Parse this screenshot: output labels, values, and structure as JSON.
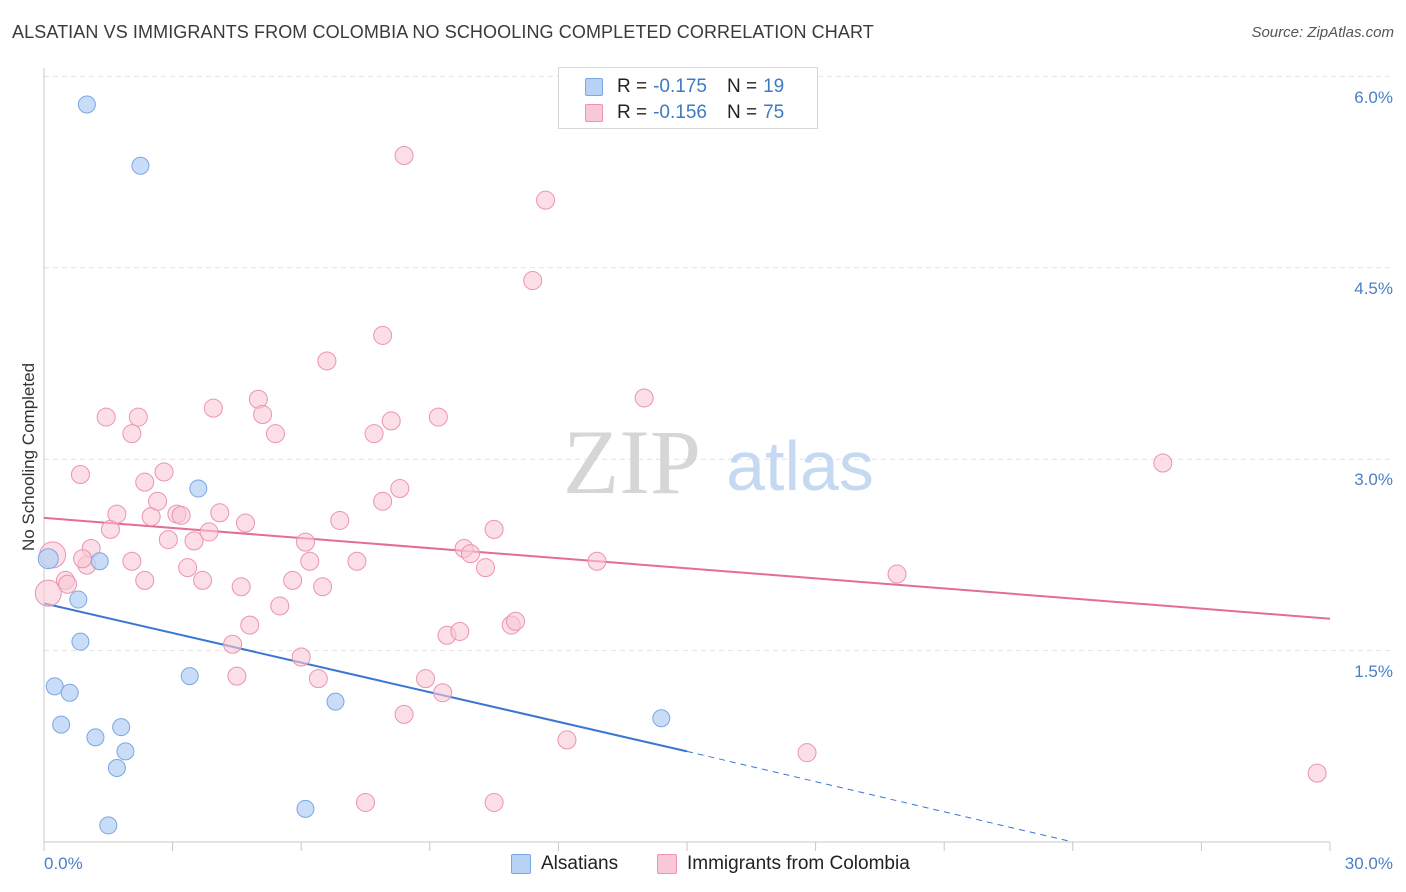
{
  "title": "ALSATIAN VS IMMIGRANTS FROM COLOMBIA NO SCHOOLING COMPLETED CORRELATION CHART",
  "source": "Source: ZipAtlas.com",
  "watermark": {
    "zip": "ZIP",
    "atlas": "atlas"
  },
  "legend": {
    "r_label": "R =",
    "n_label": "N =",
    "alsatians": {
      "r": "-0.175",
      "n": "19"
    },
    "colombia": {
      "r": "-0.156",
      "n": "75"
    }
  },
  "colors": {
    "blue_fill": "#b8d2f5",
    "blue_stroke": "#7aa7e2",
    "blue_line": "#3a77d1",
    "pink_fill": "#f8c8d6",
    "pink_stroke": "#ec93b0",
    "pink_line": "#e46d94",
    "tick_label": "#4a7fc6"
  },
  "chart_data": {
    "type": "scatter",
    "title": "ALSATIAN VS IMMIGRANTS FROM COLOMBIA NO SCHOOLING COMPLETED CORRELATION CHART",
    "xlabel": "",
    "ylabel": "No Schooling Completed",
    "xlim": [
      0,
      30
    ],
    "ylim": [
      0,
      6.3
    ],
    "x_tick_labels": [
      "0.0%",
      "30.0%"
    ],
    "y_ticks": [
      1.5,
      3.0,
      4.5,
      6.0
    ],
    "y_tick_labels": [
      "1.5%",
      "3.0%",
      "4.5%",
      "6.0%"
    ],
    "grid": "horizontal dashed",
    "legend_position": "bottom-center",
    "series": [
      {
        "name": "Alsatians",
        "color": "#7aa7e2",
        "points": [
          [
            0.1,
            2.22
          ],
          [
            1.0,
            5.78
          ],
          [
            2.25,
            5.3
          ],
          [
            0.8,
            1.9
          ],
          [
            1.3,
            2.2
          ],
          [
            0.85,
            1.57
          ],
          [
            3.6,
            2.77
          ],
          [
            0.25,
            1.22
          ],
          [
            0.6,
            1.17
          ],
          [
            0.4,
            0.92
          ],
          [
            1.2,
            0.82
          ],
          [
            1.8,
            0.9
          ],
          [
            1.9,
            0.71
          ],
          [
            1.7,
            0.58
          ],
          [
            3.4,
            1.3
          ],
          [
            6.8,
            1.1
          ],
          [
            14.4,
            0.97
          ],
          [
            1.5,
            0.13
          ],
          [
            6.1,
            0.26
          ]
        ],
        "trend": {
          "x0": 0,
          "y0": 1.87,
          "x1": 15.0,
          "y1": 0.71,
          "dashed_to_x": 24.0,
          "dashed_to_y": 0.0
        }
      },
      {
        "name": "Immigrants from Colombia",
        "color": "#ec93b0",
        "points": [
          [
            0.2,
            2.25
          ],
          [
            0.1,
            1.95
          ],
          [
            0.5,
            2.05
          ],
          [
            0.55,
            2.02
          ],
          [
            1.0,
            2.17
          ],
          [
            1.1,
            2.3
          ],
          [
            0.85,
            2.88
          ],
          [
            1.45,
            3.33
          ],
          [
            1.55,
            2.45
          ],
          [
            2.05,
            2.2
          ],
          [
            2.35,
            2.05
          ],
          [
            1.7,
            2.57
          ],
          [
            2.2,
            3.33
          ],
          [
            2.05,
            3.2
          ],
          [
            2.35,
            2.82
          ],
          [
            2.5,
            2.55
          ],
          [
            2.65,
            2.67
          ],
          [
            2.8,
            2.9
          ],
          [
            2.9,
            2.37
          ],
          [
            3.1,
            2.57
          ],
          [
            3.2,
            2.56
          ],
          [
            3.35,
            2.15
          ],
          [
            3.5,
            2.36
          ],
          [
            3.7,
            2.05
          ],
          [
            3.85,
            2.43
          ],
          [
            3.95,
            3.4
          ],
          [
            4.1,
            2.58
          ],
          [
            4.4,
            1.55
          ],
          [
            4.5,
            1.3
          ],
          [
            4.6,
            2.0
          ],
          [
            4.7,
            2.5
          ],
          [
            4.8,
            1.7
          ],
          [
            5.0,
            3.47
          ],
          [
            5.1,
            3.35
          ],
          [
            5.4,
            3.2
          ],
          [
            5.5,
            1.85
          ],
          [
            5.8,
            2.05
          ],
          [
            6.0,
            1.45
          ],
          [
            6.1,
            2.35
          ],
          [
            6.2,
            2.2
          ],
          [
            6.4,
            1.28
          ],
          [
            6.5,
            2.0
          ],
          [
            6.6,
            3.77
          ],
          [
            6.9,
            2.52
          ],
          [
            7.3,
            2.2
          ],
          [
            7.5,
            0.31
          ],
          [
            7.7,
            3.2
          ],
          [
            7.9,
            3.97
          ],
          [
            7.9,
            2.67
          ],
          [
            8.1,
            3.3
          ],
          [
            8.3,
            2.77
          ],
          [
            8.4,
            1.0
          ],
          [
            8.4,
            5.38
          ],
          [
            8.9,
            1.28
          ],
          [
            9.2,
            3.33
          ],
          [
            9.3,
            1.17
          ],
          [
            9.4,
            1.62
          ],
          [
            9.7,
            1.65
          ],
          [
            9.8,
            2.3
          ],
          [
            9.95,
            2.26
          ],
          [
            10.3,
            2.15
          ],
          [
            10.5,
            2.45
          ],
          [
            10.5,
            0.31
          ],
          [
            10.9,
            1.7
          ],
          [
            11.0,
            1.73
          ],
          [
            11.4,
            4.4
          ],
          [
            11.7,
            5.03
          ],
          [
            12.2,
            0.8
          ],
          [
            12.9,
            2.2
          ],
          [
            14.0,
            3.48
          ],
          [
            17.8,
            0.7
          ],
          [
            19.9,
            2.1
          ],
          [
            26.1,
            2.97
          ],
          [
            29.7,
            0.54
          ],
          [
            0.9,
            2.22
          ]
        ],
        "trend": {
          "x0": 0,
          "y0": 2.54,
          "x1": 30.0,
          "y1": 1.75
        }
      }
    ]
  },
  "bottom_legend": {
    "alsatians": "Alsatians",
    "colombia": "Immigrants from Colombia"
  }
}
